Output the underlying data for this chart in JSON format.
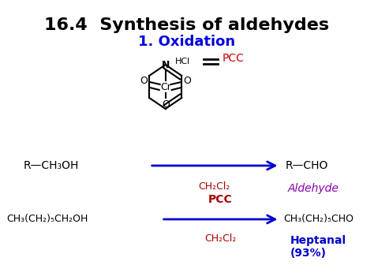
{
  "title": "16.4  Synthesis of aldehydes",
  "subtitle": "1. Oxidation",
  "title_color": "#000000",
  "subtitle_color": "#0000dd",
  "background_color": "#ffffff",
  "reaction1": {
    "reactant": "R—CH₃OH",
    "product": "R—CHO",
    "reagent_below": "CH₂Cl₂",
    "product_label": "Aldehyde",
    "reagent_color": "#aa0000",
    "product_label_color": "#8800aa",
    "arrow_color": "#0000cc"
  },
  "reaction2": {
    "reactant": "CH₃(CH₂)₅CH₂OH",
    "product": "CH₃(CH₂)₅CHO",
    "reagent_above": "PCC",
    "reagent_below": "CH₂Cl₂",
    "product_label": "Heptanal\n(93%)",
    "reagent_color": "#aa0000",
    "product_label_color": "#0000cc",
    "arrow_color": "#0000cc"
  },
  "pcc_label_color": "#cc0000",
  "pcc_equal_color": "#000000"
}
